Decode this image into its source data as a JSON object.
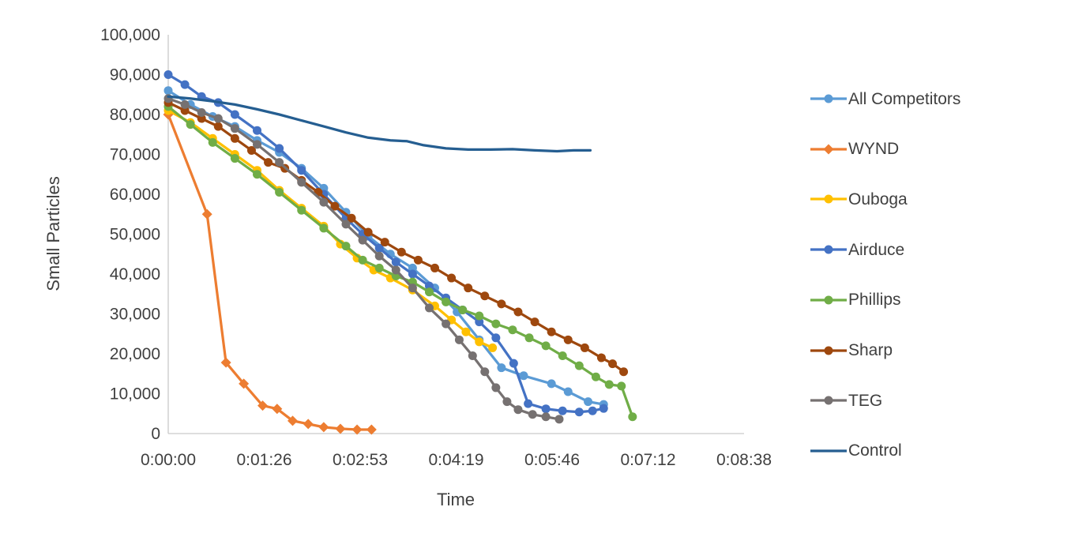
{
  "chart_data": {
    "type": "line",
    "title": "",
    "xlabel": "Time",
    "ylabel": "Small Particles",
    "grid": false,
    "legend_position": "right",
    "background": "#FFFFFF",
    "axis_line_color": "#C9C9C9",
    "text_color": "#404040",
    "x_axis": {
      "min_seconds": 0,
      "max_seconds": 518.4,
      "ticks": [
        {
          "label": "0:00:00",
          "seconds": 0
        },
        {
          "label": "0:01:26",
          "seconds": 86.4
        },
        {
          "label": "0:02:53",
          "seconds": 172.8
        },
        {
          "label": "0:04:19",
          "seconds": 259.2
        },
        {
          "label": "0:05:46",
          "seconds": 345.6
        },
        {
          "label": "0:07:12",
          "se6conds": 432.0,
          "seconds": 432.0
        },
        {
          "label": "0:08:38",
          "seconds": 518.4
        }
      ]
    },
    "y_axis": {
      "min": 0,
      "max": 100000,
      "tick_step": 10000,
      "tick_labels": [
        "0",
        "10,000",
        "20,000",
        "30,000",
        "40,000",
        "50,000",
        "60,000",
        "70,000",
        "80,000",
        "90,000",
        "100,000"
      ]
    },
    "series": [
      {
        "name": "All Competitors",
        "color": "#5B9BD5",
        "marker": "circle",
        "points": [
          [
            0,
            86000
          ],
          [
            20,
            82500
          ],
          [
            40,
            79500
          ],
          [
            60,
            77000
          ],
          [
            80,
            73500
          ],
          [
            100,
            70500
          ],
          [
            120,
            66500
          ],
          [
            140,
            61500
          ],
          [
            160,
            55500
          ],
          [
            180,
            49500
          ],
          [
            200,
            45000
          ],
          [
            220,
            41500
          ],
          [
            240,
            36500
          ],
          [
            260,
            30500
          ],
          [
            280,
            23500
          ],
          [
            300,
            16500
          ],
          [
            320,
            14500
          ],
          [
            345,
            12500
          ],
          [
            360,
            10500
          ],
          [
            378,
            8000
          ],
          [
            392,
            7300
          ]
        ]
      },
      {
        "name": "WYND",
        "color": "#ED7D31",
        "marker": "diamond",
        "points": [
          [
            0,
            80000
          ],
          [
            35,
            55000
          ],
          [
            52,
            17800
          ],
          [
            68,
            12500
          ],
          [
            85,
            7000
          ],
          [
            98,
            6200
          ],
          [
            112,
            3200
          ],
          [
            126,
            2400
          ],
          [
            140,
            1600
          ],
          [
            155,
            1200
          ],
          [
            170,
            1000
          ],
          [
            183,
            1000
          ]
        ]
      },
      {
        "name": "Ouboga",
        "color": "#FFC000",
        "marker": "circle",
        "points": [
          [
            0,
            81000
          ],
          [
            20,
            78000
          ],
          [
            40,
            74000
          ],
          [
            60,
            70000
          ],
          [
            80,
            66000
          ],
          [
            100,
            61000
          ],
          [
            120,
            56500
          ],
          [
            140,
            52000
          ],
          [
            155,
            47500
          ],
          [
            170,
            44000
          ],
          [
            185,
            41000
          ],
          [
            200,
            39000
          ],
          [
            220,
            36000
          ],
          [
            240,
            32000
          ],
          [
            255,
            28500
          ],
          [
            268,
            25500
          ],
          [
            280,
            23000
          ],
          [
            292,
            21500
          ]
        ]
      },
      {
        "name": "Airduce",
        "color": "#4472C4",
        "marker": "circle",
        "points": [
          [
            0,
            90000
          ],
          [
            15,
            87500
          ],
          [
            30,
            84500
          ],
          [
            45,
            83000
          ],
          [
            60,
            80000
          ],
          [
            80,
            76000
          ],
          [
            100,
            71500
          ],
          [
            120,
            66000
          ],
          [
            140,
            60000
          ],
          [
            160,
            54000
          ],
          [
            175,
            50000
          ],
          [
            190,
            46500
          ],
          [
            205,
            43000
          ],
          [
            220,
            40000
          ],
          [
            235,
            37000
          ],
          [
            250,
            34000
          ],
          [
            265,
            31000
          ],
          [
            280,
            28000
          ],
          [
            295,
            24000
          ],
          [
            311,
            17600
          ],
          [
            324,
            7500
          ],
          [
            340,
            6200
          ],
          [
            355,
            5700
          ],
          [
            370,
            5400
          ],
          [
            382,
            5700
          ],
          [
            392,
            6300
          ]
        ]
      },
      {
        "name": "Phillips",
        "color": "#70AD47",
        "marker": "circle",
        "points": [
          [
            0,
            82000
          ],
          [
            20,
            77500
          ],
          [
            40,
            73000
          ],
          [
            60,
            69000
          ],
          [
            80,
            65000
          ],
          [
            100,
            60500
          ],
          [
            120,
            56000
          ],
          [
            140,
            51500
          ],
          [
            160,
            47000
          ],
          [
            175,
            43500
          ],
          [
            190,
            41500
          ],
          [
            205,
            39500
          ],
          [
            220,
            38000
          ],
          [
            235,
            35500
          ],
          [
            250,
            33000
          ],
          [
            265,
            31000
          ],
          [
            280,
            29500
          ],
          [
            295,
            27500
          ],
          [
            310,
            26000
          ],
          [
            325,
            24000
          ],
          [
            340,
            22000
          ],
          [
            355,
            19500
          ],
          [
            370,
            17000
          ],
          [
            385,
            14200
          ],
          [
            397,
            12300
          ],
          [
            408,
            11900
          ],
          [
            418,
            4200
          ]
        ]
      },
      {
        "name": "Sharp",
        "color": "#9E480E",
        "marker": "circle",
        "points": [
          [
            0,
            83000
          ],
          [
            15,
            81000
          ],
          [
            30,
            79000
          ],
          [
            45,
            77000
          ],
          [
            60,
            74000
          ],
          [
            75,
            71000
          ],
          [
            90,
            68000
          ],
          [
            105,
            66500
          ],
          [
            120,
            63500
          ],
          [
            135,
            60500
          ],
          [
            150,
            57000
          ],
          [
            165,
            54000
          ],
          [
            180,
            50500
          ],
          [
            195,
            48000
          ],
          [
            210,
            45500
          ],
          [
            225,
            43500
          ],
          [
            240,
            41500
          ],
          [
            255,
            39000
          ],
          [
            270,
            36500
          ],
          [
            285,
            34500
          ],
          [
            300,
            32500
          ],
          [
            315,
            30500
          ],
          [
            330,
            28000
          ],
          [
            345,
            25500
          ],
          [
            360,
            23500
          ],
          [
            375,
            21500
          ],
          [
            390,
            19000
          ],
          [
            400,
            17500
          ],
          [
            410,
            15500
          ]
        ]
      },
      {
        "name": "TEG",
        "color": "#767171",
        "marker": "circle",
        "points": [
          [
            0,
            84000
          ],
          [
            15,
            82500
          ],
          [
            30,
            80500
          ],
          [
            45,
            79000
          ],
          [
            60,
            76500
          ],
          [
            80,
            72500
          ],
          [
            100,
            68000
          ],
          [
            120,
            63000
          ],
          [
            140,
            58000
          ],
          [
            160,
            52500
          ],
          [
            175,
            48500
          ],
          [
            190,
            44500
          ],
          [
            205,
            41000
          ],
          [
            220,
            36500
          ],
          [
            235,
            31500
          ],
          [
            250,
            27500
          ],
          [
            262,
            23500
          ],
          [
            274,
            19500
          ],
          [
            285,
            15500
          ],
          [
            295,
            11500
          ],
          [
            305,
            8000
          ],
          [
            315,
            6000
          ],
          [
            328,
            4800
          ],
          [
            340,
            4200
          ],
          [
            352,
            3600
          ]
        ]
      },
      {
        "name": "Control",
        "color": "#255E91",
        "marker": "none",
        "points": [
          [
            0,
            84500
          ],
          [
            20,
            84000
          ],
          [
            40,
            83300
          ],
          [
            60,
            82500
          ],
          [
            80,
            81300
          ],
          [
            100,
            80000
          ],
          [
            120,
            78500
          ],
          [
            140,
            77000
          ],
          [
            160,
            75500
          ],
          [
            180,
            74200
          ],
          [
            200,
            73500
          ],
          [
            215,
            73300
          ],
          [
            230,
            72300
          ],
          [
            250,
            71500
          ],
          [
            270,
            71200
          ],
          [
            290,
            71200
          ],
          [
            310,
            71300
          ],
          [
            330,
            71000
          ],
          [
            350,
            70800
          ],
          [
            365,
            71000
          ],
          [
            380,
            71000
          ]
        ]
      }
    ]
  }
}
